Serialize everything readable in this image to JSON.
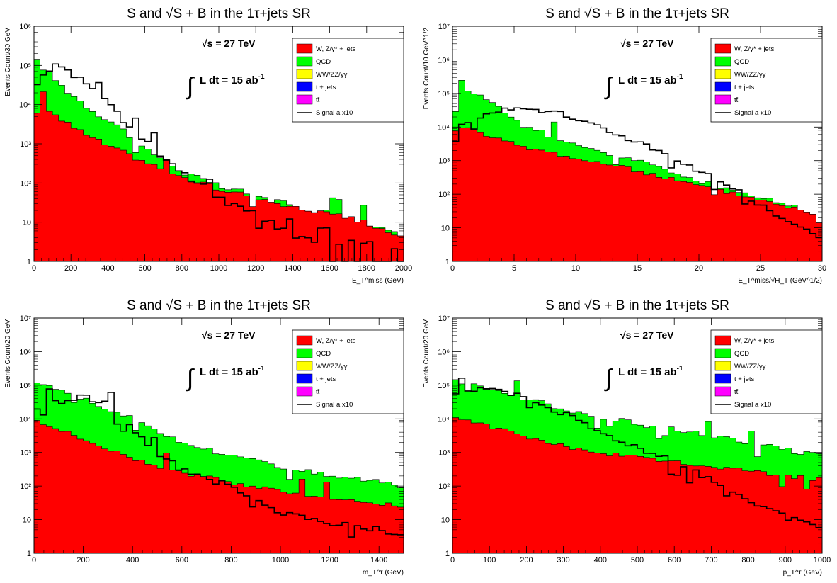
{
  "chart_data": [
    {
      "type": "area",
      "title": "S and √S + B  in the 1τ+jets SR",
      "energy": "√s = 27 TeV",
      "lumi": "L dt = 15 ab",
      "lumi_exp": "-1",
      "xlabel": "E_T^miss (GeV)",
      "ylabel": "Events Count/30 GeV",
      "xlim": [
        0,
        2000
      ],
      "ylim": [
        1,
        1000000
      ],
      "y_scale": "log",
      "xticks": [
        0,
        200,
        400,
        600,
        800,
        1000,
        1200,
        1400,
        1600,
        1800,
        2000
      ],
      "yticks": [
        "1",
        "10",
        "10²",
        "10³",
        "10⁴",
        "10⁵",
        "10⁶"
      ],
      "legend_position": "top-right",
      "legend": [
        "W, Z/γ* + jets",
        "QCD",
        "WW/ZZ/γγ",
        "t + jets",
        "tt̄",
        "Signal a x10"
      ],
      "series_shape": {
        "background_total": [
          [
            0,
            150000
          ],
          [
            60,
            80000
          ],
          [
            150,
            30000
          ],
          [
            300,
            8000
          ],
          [
            450,
            3000
          ],
          [
            600,
            800
          ],
          [
            800,
            200
          ],
          [
            1000,
            80
          ],
          [
            1200,
            50
          ],
          [
            1400,
            25
          ],
          [
            1600,
            18
          ],
          [
            1800,
            10
          ],
          [
            2000,
            4
          ]
        ],
        "wz_jets": [
          [
            0,
            15000
          ],
          [
            60,
            9000
          ],
          [
            150,
            4000
          ],
          [
            300,
            1500
          ],
          [
            450,
            700
          ],
          [
            600,
            350
          ],
          [
            800,
            140
          ],
          [
            1000,
            70
          ],
          [
            1200,
            45
          ],
          [
            1400,
            25
          ],
          [
            1600,
            18
          ],
          [
            1800,
            10
          ],
          [
            2000,
            4
          ]
        ],
        "signal": [
          [
            0,
            20000
          ],
          [
            60,
            80000
          ],
          [
            150,
            100000
          ],
          [
            300,
            30000
          ],
          [
            450,
            6000
          ],
          [
            600,
            1200
          ],
          [
            800,
            200
          ],
          [
            1000,
            40
          ],
          [
            1200,
            15
          ],
          [
            1400,
            5
          ],
          [
            1600,
            3
          ],
          [
            1800,
            3
          ],
          [
            2000,
            2
          ]
        ]
      }
    },
    {
      "type": "area",
      "title": "S and √S + B  in the 1τ+jets SR",
      "energy": "√s = 27 TeV",
      "lumi": "L dt = 15 ab",
      "lumi_exp": "-1",
      "xlabel": "E_T^miss/√H_T (GeV^1/2)",
      "ylabel": "Events Count/10 GeV^1/2",
      "xlim": [
        0,
        30
      ],
      "ylim": [
        1,
        10000000
      ],
      "y_scale": "log",
      "xticks": [
        0,
        5,
        10,
        15,
        20,
        25,
        30
      ],
      "yticks": [
        "1",
        "10",
        "10²",
        "10³",
        "10⁴",
        "10⁵",
        "10⁶",
        "10⁷"
      ],
      "legend_position": "top-right",
      "legend": [
        "W, Z/γ* + jets",
        "QCD",
        "WW/ZZ/γγ",
        "t + jets",
        "tt̄",
        "Signal a x10"
      ],
      "series_shape": {
        "background_total": [
          [
            0,
            20000
          ],
          [
            1,
            150000
          ],
          [
            3,
            60000
          ],
          [
            6,
            10000
          ],
          [
            10,
            3000
          ],
          [
            15,
            1000
          ],
          [
            20,
            250
          ],
          [
            25,
            80
          ],
          [
            30,
            25
          ]
        ],
        "wz_jets": [
          [
            0,
            8000
          ],
          [
            1,
            10000
          ],
          [
            3,
            5000
          ],
          [
            6,
            2500
          ],
          [
            10,
            1200
          ],
          [
            15,
            500
          ],
          [
            20,
            180
          ],
          [
            25,
            70
          ],
          [
            30,
            25
          ]
        ],
        "signal": [
          [
            0,
            8000
          ],
          [
            1,
            12000
          ],
          [
            3,
            30000
          ],
          [
            5,
            40000
          ],
          [
            8,
            30000
          ],
          [
            12,
            10000
          ],
          [
            16,
            2500
          ],
          [
            20,
            500
          ],
          [
            24,
            80
          ],
          [
            27,
            15
          ],
          [
            30,
            5
          ]
        ]
      }
    },
    {
      "type": "area",
      "title": "S and √S + B  in the 1τ+jets SR",
      "energy": "√s = 27 TeV",
      "lumi": "L dt = 15 ab",
      "lumi_exp": "-1",
      "xlabel": "m_T^τ (GeV)",
      "ylabel": "Events Count/20 GeV",
      "xlim": [
        0,
        1500
      ],
      "ylim": [
        1,
        10000000
      ],
      "y_scale": "log",
      "xticks": [
        0,
        200,
        400,
        600,
        800,
        1000,
        1200,
        1400
      ],
      "yticks": [
        "1",
        "10",
        "10²",
        "10³",
        "10⁴",
        "10⁵",
        "10⁶",
        "10⁷"
      ],
      "legend_position": "top-right",
      "legend": [
        "W, Z/γ* + jets",
        "QCD",
        "WW/ZZ/γγ",
        "t + jets",
        "tt̄",
        "Signal a x10"
      ],
      "series_shape": {
        "background_total": [
          [
            0,
            130000
          ],
          [
            100,
            80000
          ],
          [
            200,
            40000
          ],
          [
            300,
            20000
          ],
          [
            400,
            10000
          ],
          [
            500,
            4000
          ],
          [
            600,
            2000
          ],
          [
            800,
            800
          ],
          [
            1000,
            400
          ],
          [
            1200,
            200
          ],
          [
            1400,
            150
          ],
          [
            1500,
            100
          ]
        ],
        "wz_jets": [
          [
            0,
            10000
          ],
          [
            100,
            5000
          ],
          [
            200,
            2500
          ],
          [
            300,
            1300
          ],
          [
            400,
            700
          ],
          [
            500,
            400
          ],
          [
            600,
            250
          ],
          [
            800,
            130
          ],
          [
            1000,
            70
          ],
          [
            1200,
            45
          ],
          [
            1400,
            30
          ],
          [
            1500,
            25
          ]
        ],
        "signal": [
          [
            0,
            20000
          ],
          [
            100,
            30000
          ],
          [
            200,
            45000
          ],
          [
            300,
            30000
          ],
          [
            400,
            5000
          ],
          [
            500,
            1000
          ],
          [
            600,
            300
          ],
          [
            800,
            100
          ],
          [
            1000,
            15
          ],
          [
            1200,
            8
          ],
          [
            1400,
            5
          ],
          [
            1500,
            3
          ]
        ]
      }
    },
    {
      "type": "area",
      "title": "S and √S + B  in the 1τ+jets SR",
      "energy": "√s = 27 TeV",
      "lumi": "L dt = 15 ab",
      "lumi_exp": "-1",
      "xlabel": "p_T^τ (GeV)",
      "ylabel": "Events Count/20 GeV",
      "xlim": [
        0,
        1000
      ],
      "ylim": [
        1,
        10000000
      ],
      "y_scale": "log",
      "xticks": [
        0,
        100,
        200,
        300,
        400,
        500,
        600,
        700,
        800,
        900,
        1000
      ],
      "yticks": [
        "1",
        "10",
        "10²",
        "10³",
        "10⁴",
        "10⁵",
        "10⁶",
        "10⁷"
      ],
      "legend_position": "top-right",
      "legend": [
        "W, Z/γ* + jets",
        "QCD",
        "WW/ZZ/γγ",
        "t + jets",
        "tt̄",
        "Signal a x10"
      ],
      "series_shape": {
        "background_total": [
          [
            0,
            150000
          ],
          [
            100,
            80000
          ],
          [
            200,
            40000
          ],
          [
            300,
            20000
          ],
          [
            400,
            12000
          ],
          [
            500,
            7000
          ],
          [
            600,
            5000
          ],
          [
            700,
            3000
          ],
          [
            800,
            2000
          ],
          [
            900,
            1200
          ],
          [
            1000,
            800
          ]
        ],
        "wz_jets": [
          [
            0,
            10000
          ],
          [
            100,
            6000
          ],
          [
            200,
            3000
          ],
          [
            300,
            1500
          ],
          [
            400,
            1000
          ],
          [
            500,
            700
          ],
          [
            600,
            500
          ],
          [
            700,
            400
          ],
          [
            800,
            300
          ],
          [
            900,
            200
          ],
          [
            1000,
            160
          ]
        ],
        "signal": [
          [
            0,
            50000
          ],
          [
            100,
            80000
          ],
          [
            200,
            40000
          ],
          [
            300,
            15000
          ],
          [
            400,
            4000
          ],
          [
            500,
            1500
          ],
          [
            600,
            500
          ],
          [
            700,
            150
          ],
          [
            800,
            40
          ],
          [
            900,
            12
          ],
          [
            1000,
            5
          ]
        ]
      }
    }
  ],
  "colors": {
    "wz_jets": "#ff0000",
    "qcd": "#00ff00",
    "ww_zz": "#ffff00",
    "t_jets": "#0000ff",
    "ttbar": "#ff00ff",
    "signal": "#000000"
  }
}
